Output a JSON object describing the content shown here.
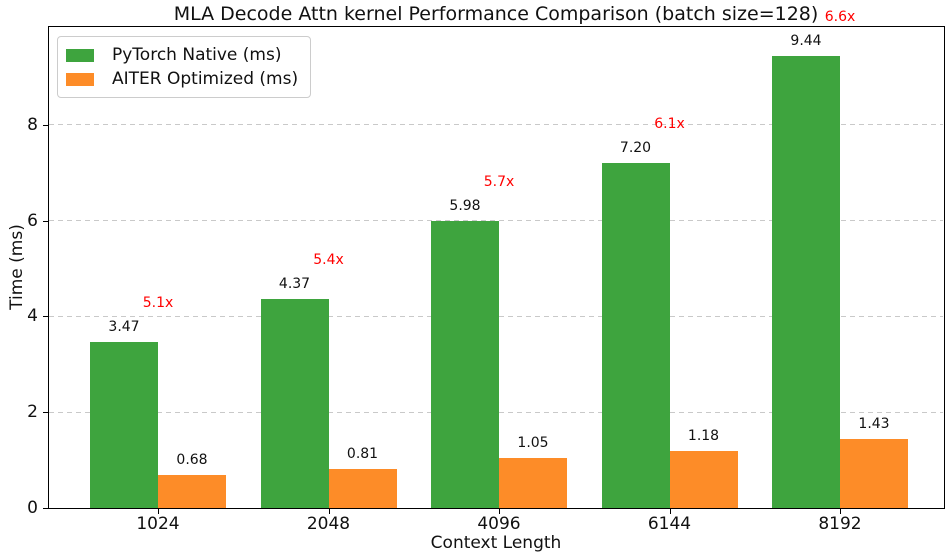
{
  "chart_data": {
    "type": "bar",
    "title": "MLA Decode Attn kernel Performance Comparison (batch size=128)",
    "xlabel": "Context Length",
    "ylabel": "Time (ms)",
    "categories": [
      "1024",
      "2048",
      "4096",
      "6144",
      "8192"
    ],
    "series": [
      {
        "name": "PyTorch Native (ms)",
        "color": "#3ea43e",
        "values": [
          3.47,
          4.37,
          5.98,
          7.2,
          9.44
        ]
      },
      {
        "name": "AITER Optimized (ms)",
        "color": "#fd8c28",
        "values": [
          0.68,
          0.81,
          1.05,
          1.18,
          1.43
        ]
      }
    ],
    "annotations": {
      "speedup_labels": [
        "5.1x",
        "5.4x",
        "5.7x",
        "6.1x",
        "6.6x"
      ],
      "color": "#ff0000"
    },
    "yticks": [
      0,
      2,
      4,
      6,
      8
    ],
    "ylim": [
      0,
      10
    ],
    "value_label_decimals": 2,
    "grid": "horizontal-dashed",
    "legend_position": "upper-left"
  }
}
